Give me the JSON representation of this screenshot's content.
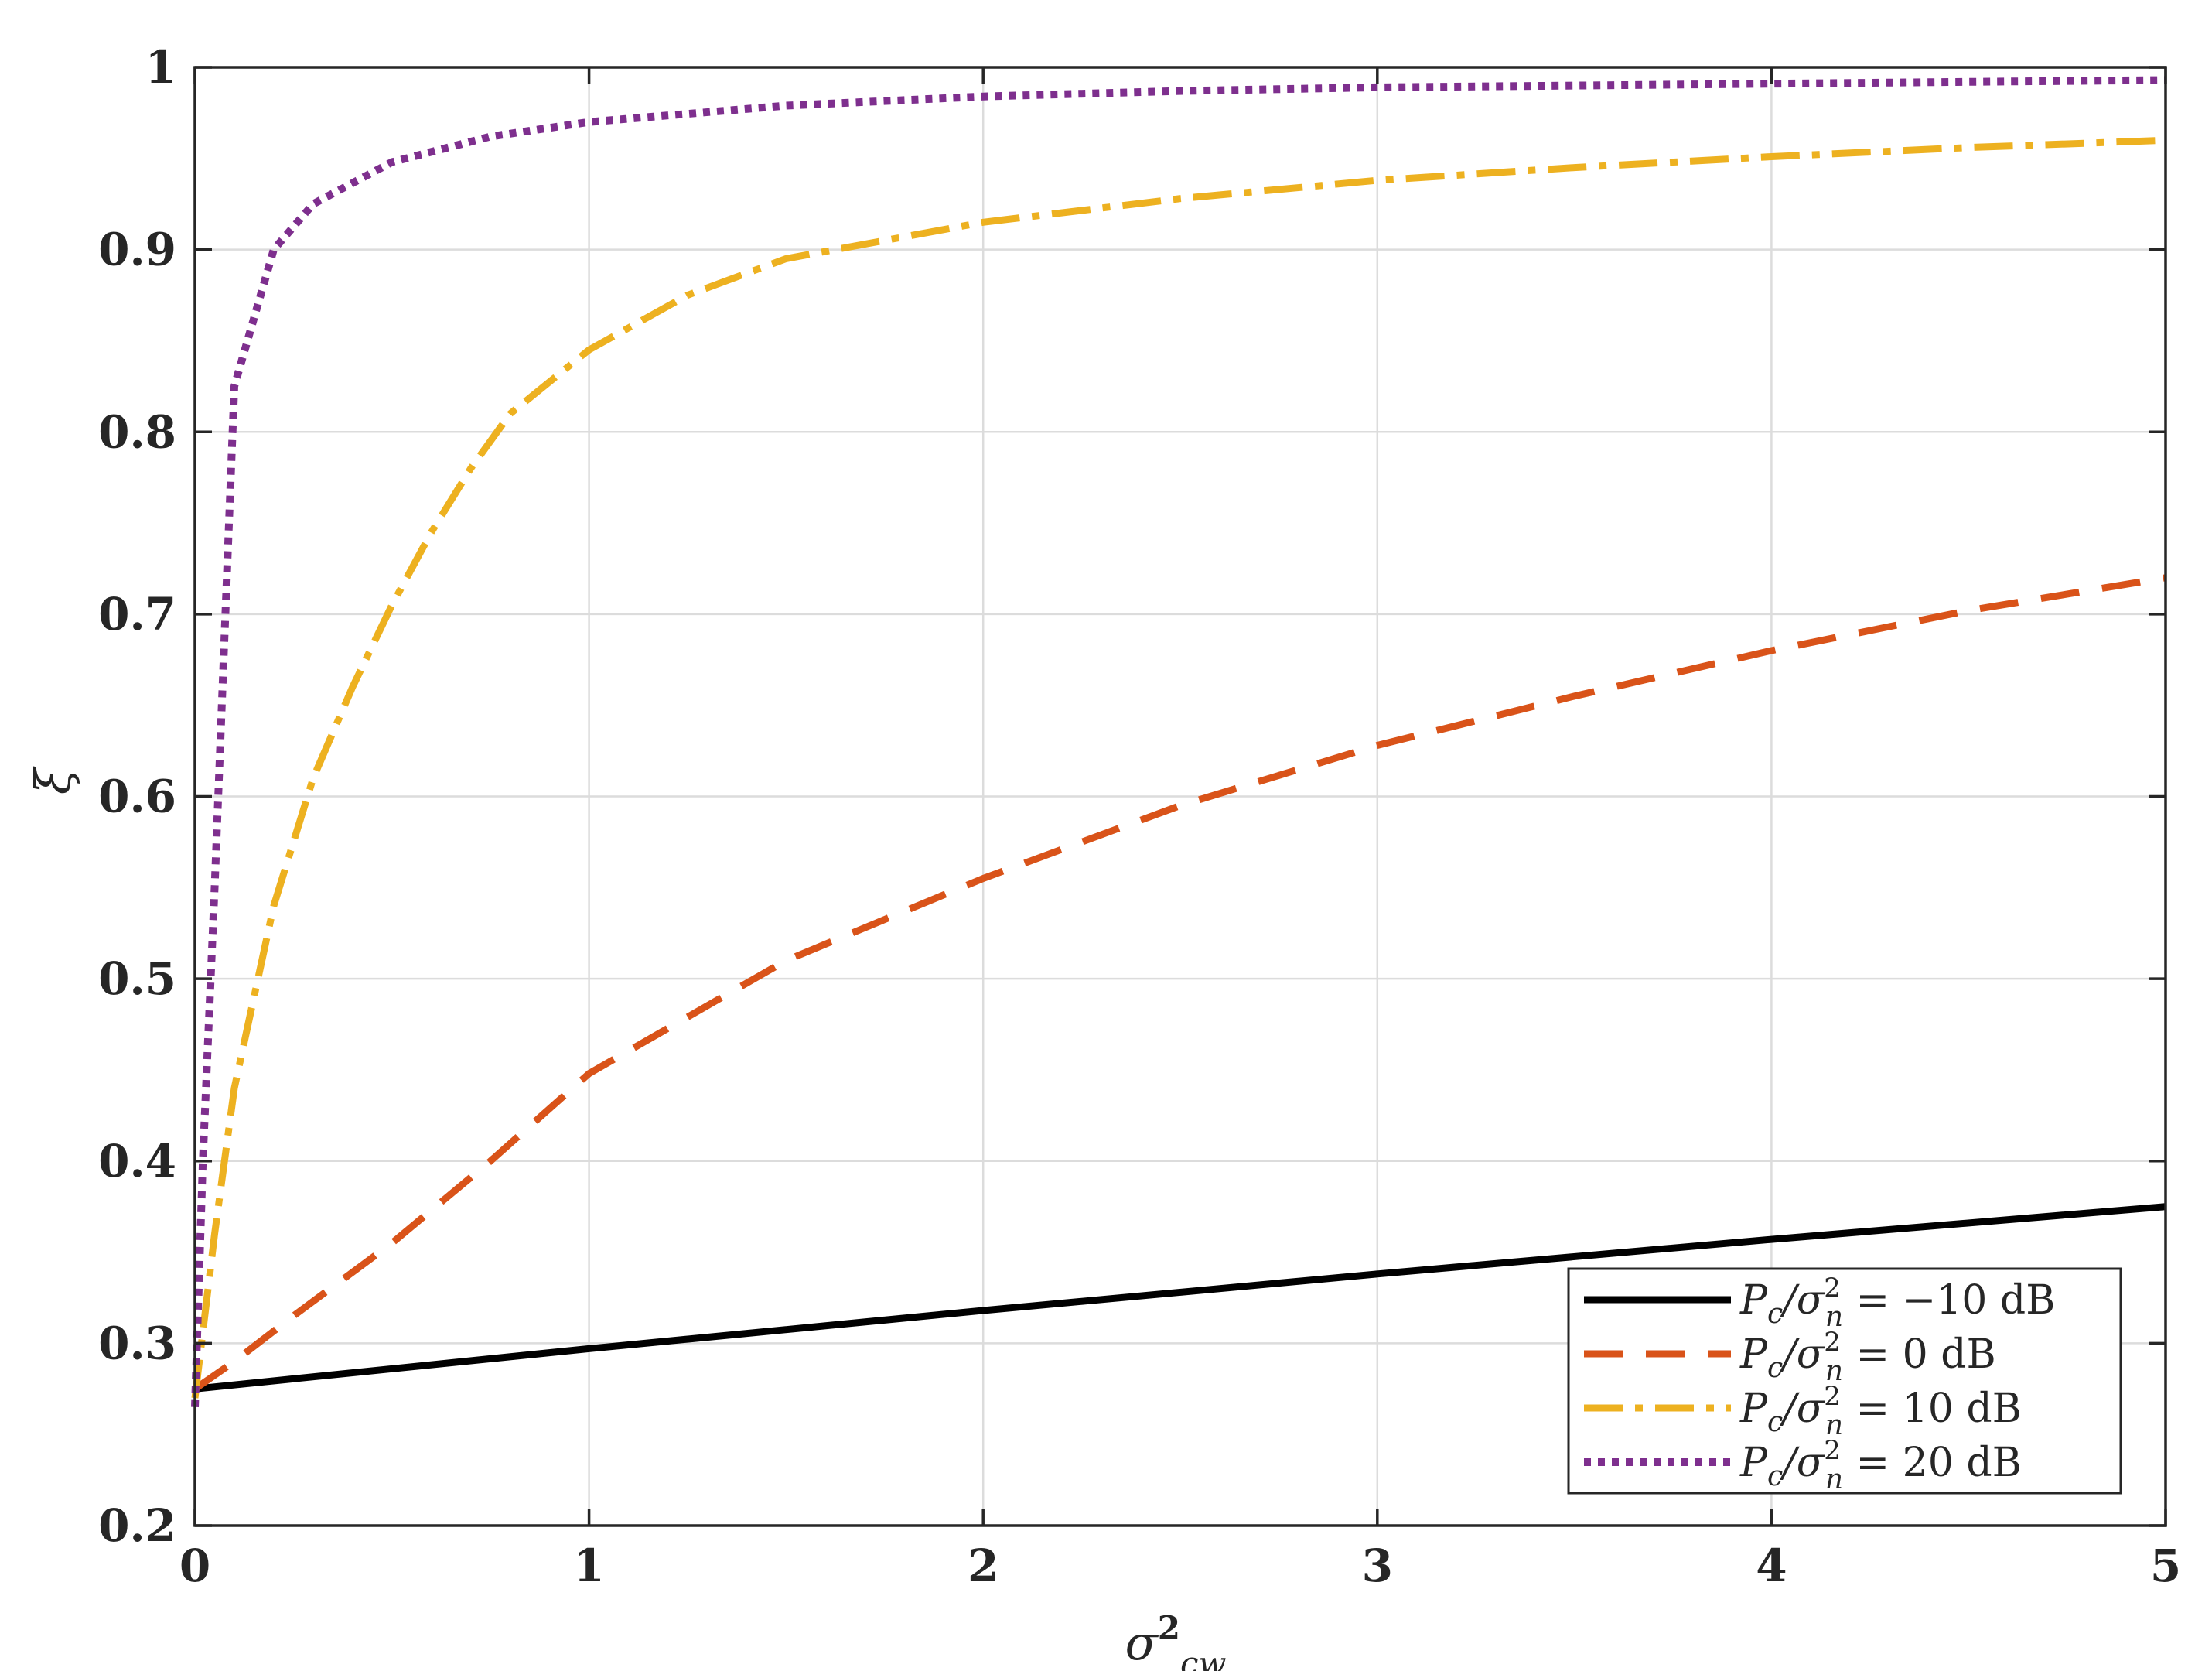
{
  "chart_data": {
    "type": "line",
    "title": "",
    "xlabel": "σ²_cw",
    "ylabel": "ξ",
    "xlim": [
      0,
      5
    ],
    "ylim": [
      0.2,
      1
    ],
    "grid": true,
    "legend_position": "bottom-right",
    "x_ticks": [
      "0",
      "1",
      "2",
      "3",
      "4",
      "5"
    ],
    "y_ticks": [
      "0.2",
      "0.3",
      "0.4",
      "0.5",
      "0.6",
      "0.7",
      "0.8",
      "0.9",
      "1"
    ],
    "series": [
      {
        "name": "Pc/σ²n = −10 dB",
        "label_parts": {
          "lhs": "P",
          "lhs_sub": "c",
          "sigma_sup": "2",
          "sigma_sub": "n",
          "value": "= −10 dB"
        },
        "color": "#000000",
        "style": "solid",
        "x": [
          0,
          1,
          2,
          3,
          4,
          5
        ],
        "y": [
          0.275,
          0.297,
          0.318,
          0.338,
          0.357,
          0.375
        ]
      },
      {
        "name": "Pc/σ²n = 0 dB",
        "label_parts": {
          "lhs": "P",
          "lhs_sub": "c",
          "sigma_sup": "2",
          "sigma_sub": "n",
          "value": "= 0 dB"
        },
        "color": "#D95319",
        "style": "dashed",
        "x": [
          0,
          0.1,
          0.25,
          0.5,
          0.75,
          1,
          1.5,
          2,
          2.5,
          3,
          3.5,
          4,
          4.5,
          5
        ],
        "y": [
          0.275,
          0.29,
          0.315,
          0.355,
          0.4,
          0.448,
          0.51,
          0.555,
          0.595,
          0.628,
          0.655,
          0.68,
          0.702,
          0.72
        ]
      },
      {
        "name": "Pc/σ²n = 10 dB",
        "label_parts": {
          "lhs": "P",
          "lhs_sub": "c",
          "sigma_sup": "2",
          "sigma_sub": "n",
          "value": "= 10 dB"
        },
        "color": "#EDB120",
        "style": "dashdot",
        "x": [
          0,
          0.05,
          0.1,
          0.2,
          0.3,
          0.4,
          0.5,
          0.6,
          0.7,
          0.8,
          1,
          1.25,
          1.5,
          2,
          2.5,
          3,
          3.5,
          4,
          4.5,
          5
        ],
        "y": [
          0.27,
          0.36,
          0.44,
          0.54,
          0.61,
          0.66,
          0.705,
          0.745,
          0.78,
          0.81,
          0.845,
          0.875,
          0.895,
          0.915,
          0.928,
          0.938,
          0.945,
          0.951,
          0.956,
          0.96
        ]
      },
      {
        "name": "Pc/σ²n = 20 dB",
        "label_parts": {
          "lhs": "P",
          "lhs_sub": "c",
          "sigma_sup": "2",
          "sigma_sub": "n",
          "value": "= 20 dB"
        },
        "color": "#7E2F8E",
        "style": "dotted",
        "x": [
          0,
          0.02,
          0.05,
          0.1,
          0.2,
          0.3,
          0.5,
          0.75,
          1,
          1.5,
          2,
          2.5,
          3,
          3.5,
          4,
          4.5,
          5
        ],
        "y": [
          0.265,
          0.4,
          0.55,
          0.825,
          0.9,
          0.925,
          0.948,
          0.962,
          0.97,
          0.979,
          0.984,
          0.987,
          0.989,
          0.99,
          0.991,
          0.992,
          0.993
        ]
      }
    ]
  }
}
